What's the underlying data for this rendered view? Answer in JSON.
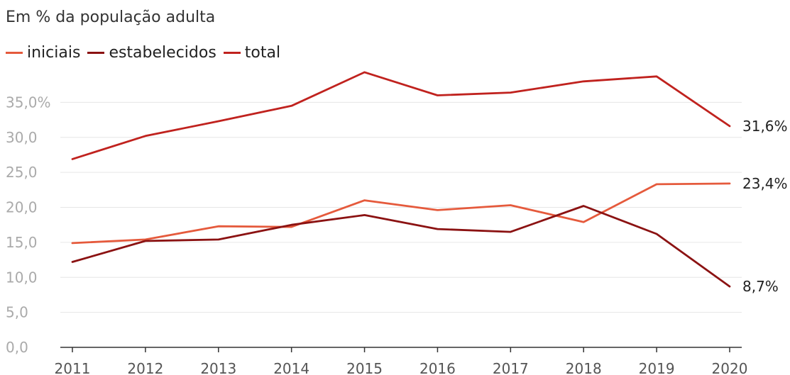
{
  "subtitle": "Em % da população adulta",
  "legend": [
    {
      "label": "iniciais",
      "color": "#e55a3c"
    },
    {
      "label": "estabelecidos",
      "color": "#8b1212"
    },
    {
      "label": "total",
      "color": "#c0221e"
    }
  ],
  "chart_data": {
    "type": "line",
    "subtitle": "Em % da população adulta",
    "x": [
      "2011",
      "2012",
      "2013",
      "2014",
      "2015",
      "2016",
      "2017",
      "2018",
      "2019",
      "2020"
    ],
    "series": [
      {
        "name": "iniciais",
        "color": "#e55a3c",
        "values": [
          14.9,
          15.4,
          17.3,
          17.2,
          21.0,
          19.6,
          20.3,
          17.9,
          23.3,
          23.4
        ],
        "end_label": "23,4%"
      },
      {
        "name": "estabelecidos",
        "color": "#8b1212",
        "values": [
          12.2,
          15.2,
          15.4,
          17.5,
          18.9,
          16.9,
          16.5,
          20.2,
          16.2,
          8.7
        ],
        "end_label": "8,7%"
      },
      {
        "name": "total",
        "color": "#c0221e",
        "values": [
          26.9,
          30.2,
          32.3,
          34.5,
          39.3,
          36.0,
          36.4,
          38.0,
          38.7,
          31.6
        ],
        "end_label": "31,6%"
      }
    ],
    "yticks": [
      {
        "value": 0,
        "label": "0,0"
      },
      {
        "value": 5,
        "label": "5,0"
      },
      {
        "value": 10,
        "label": "10,0"
      },
      {
        "value": 15,
        "label": "15,0"
      },
      {
        "value": 20,
        "label": "20,0"
      },
      {
        "value": 25,
        "label": "25,0"
      },
      {
        "value": 30,
        "label": "30,0"
      },
      {
        "value": 35,
        "label": "35,0%"
      }
    ],
    "ylim": [
      0,
      40
    ],
    "grid": true,
    "legend_position": "top-left"
  }
}
